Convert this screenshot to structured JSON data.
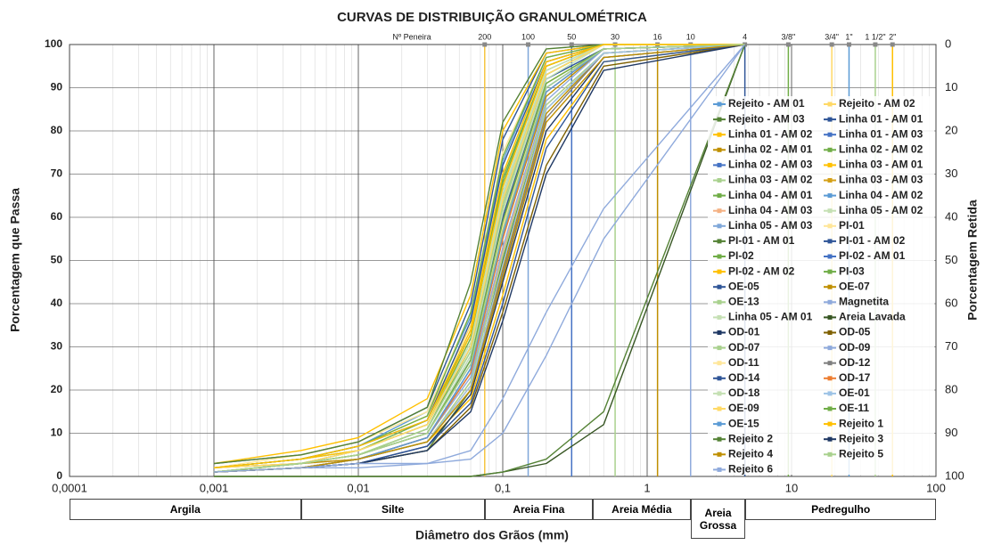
{
  "chart_data": {
    "type": "line",
    "title": "CURVAS DE DISTRIBUIÇÃO GRANULOMÉTRICA",
    "xlabel": "Diâmetro dos Grãos (mm)",
    "ylabel": "Porcentagem que Passa",
    "y2label": "Porcentagem Retida",
    "sieve_title": "Nº Peneira",
    "log_x": true,
    "grid": true,
    "xlim": [
      0.0001,
      100
    ],
    "xticks": [
      {
        "value": 0.0001,
        "label": "0,0001"
      },
      {
        "value": 0.001,
        "label": "0,001"
      },
      {
        "value": 0.01,
        "label": "0,01"
      },
      {
        "value": 0.1,
        "label": "0,1"
      },
      1,
      10,
      100
    ],
    "ylim": [
      0,
      100
    ],
    "yticks": [
      0,
      10,
      20,
      30,
      40,
      50,
      60,
      70,
      80,
      90,
      100
    ],
    "y2lim": [
      100,
      0
    ],
    "y2ticks": [
      0,
      10,
      20,
      30,
      40,
      50,
      60,
      70,
      80,
      90,
      100
    ],
    "sieves": [
      {
        "label": "200",
        "value": 0.075,
        "color": "#f5c542"
      },
      {
        "label": "100",
        "value": 0.15,
        "color": "#7fa7d9"
      },
      {
        "label": "50",
        "value": 0.3,
        "color": "#4472c4"
      },
      {
        "label": "30",
        "value": 0.6,
        "color": "#a9d18e"
      },
      {
        "label": "16",
        "value": 1.18,
        "color": "#bf8f00"
      },
      {
        "label": "10",
        "value": 2,
        "color": "#8faadc"
      },
      {
        "label": "4",
        "value": 4.75,
        "color": "#2f5597"
      },
      {
        "label": "3/8\"",
        "value": 9.5,
        "color": "#70ad47"
      },
      {
        "label": "3/4\"",
        "value": 19,
        "color": "#ffd966"
      },
      {
        "label": "1\"",
        "value": 25,
        "color": "#5b9bd5"
      },
      {
        "label": "1 1/2\"",
        "value": 38,
        "color": "#a9d18e"
      },
      {
        "label": "2\"",
        "value": 50,
        "color": "#ffc000"
      }
    ],
    "classes": [
      {
        "label": "Argila",
        "from": 0.0001,
        "to": 0.004
      },
      {
        "label": "Silte",
        "from": 0.004,
        "to": 0.075
      },
      {
        "label": "Areia Fina",
        "from": 0.075,
        "to": 0.42
      },
      {
        "label": "Areia Média",
        "from": 0.42,
        "to": 2
      },
      {
        "label": "Areia Grossa",
        "from": 2,
        "to": 4.8
      },
      {
        "label": "Pedregulho",
        "from": 4.8,
        "to": 100
      }
    ],
    "x": [
      0.001,
      0.004,
      0.01,
      0.03,
      0.06,
      0.1,
      0.2,
      0.5,
      4.75
    ],
    "series": [
      {
        "name": "Rejeito - AM 01",
        "color": "#5b9bd5",
        "values": [
          1,
          3,
          5,
          10,
          28,
          60,
          92,
          99,
          100
        ]
      },
      {
        "name": "Rejeito - AM 02",
        "color": "#ffd966",
        "values": [
          2,
          4,
          7,
          14,
          35,
          70,
          96,
          100,
          100
        ]
      },
      {
        "name": "Rejeito - AM 03",
        "color": "#548235",
        "values": [
          1,
          2,
          3,
          6,
          20,
          50,
          85,
          98,
          100
        ]
      },
      {
        "name": "Linha 01 - AM 01",
        "color": "#2f5597",
        "values": [
          3,
          5,
          8,
          16,
          40,
          78,
          98,
          100,
          100
        ]
      },
      {
        "name": "Linha 01 - AM 02",
        "color": "#ffc000",
        "values": [
          1,
          2,
          4,
          8,
          18,
          42,
          78,
          96,
          100
        ]
      },
      {
        "name": "Linha 01 - AM 03",
        "color": "#4472c4",
        "values": [
          2,
          3,
          6,
          12,
          30,
          65,
          94,
          100,
          100
        ]
      },
      {
        "name": "Linha 02 - AM 01",
        "color": "#bf8f00",
        "values": [
          1,
          3,
          4,
          9,
          24,
          55,
          88,
          99,
          100
        ]
      },
      {
        "name": "Linha 02 - AM 02",
        "color": "#70ad47",
        "values": [
          2,
          4,
          6,
          12,
          32,
          68,
          95,
          100,
          100
        ]
      },
      {
        "name": "Linha 02 - AM 03",
        "color": "#4472c4",
        "values": [
          1,
          2,
          4,
          9,
          25,
          57,
          90,
          99,
          100
        ]
      },
      {
        "name": "Linha 03 - AM 01",
        "color": "#ffc000",
        "values": [
          3,
          6,
          9,
          18,
          42,
          80,
          98,
          100,
          100
        ]
      },
      {
        "name": "Linha 03 - AM 02",
        "color": "#a9d18e",
        "values": [
          1,
          3,
          5,
          11,
          29,
          62,
          93,
          100,
          100
        ]
      },
      {
        "name": "Linha 03 - AM 03",
        "color": "#d4a017",
        "values": [
          2,
          3,
          5,
          10,
          27,
          59,
          91,
          99,
          100
        ]
      },
      {
        "name": "Linha 04 - AM 01",
        "color": "#70ad47",
        "values": [
          1,
          3,
          6,
          13,
          33,
          69,
          95,
          100,
          100
        ]
      },
      {
        "name": "Linha 04 - AM 02",
        "color": "#5b9bd5",
        "values": [
          2,
          4,
          7,
          15,
          37,
          73,
          97,
          100,
          100
        ]
      },
      {
        "name": "Linha 04 - AM 03",
        "color": "#f4b183",
        "values": [
          1,
          2,
          4,
          8,
          22,
          52,
          86,
          98,
          100
        ]
      },
      {
        "name": "Linha 05 - AM 02",
        "color": "#c5e0b4",
        "values": [
          2,
          4,
          6,
          12,
          31,
          66,
          94,
          100,
          100
        ]
      },
      {
        "name": "Linha 05 - AM 03",
        "color": "#7fa7d9",
        "values": [
          1,
          3,
          5,
          10,
          26,
          58,
          90,
          99,
          100
        ]
      },
      {
        "name": "PI-01",
        "color": "#ffe699",
        "values": [
          2,
          5,
          8,
          15,
          38,
          75,
          97,
          100,
          100
        ]
      },
      {
        "name": "PI-01 - AM 01",
        "color": "#548235",
        "values": [
          3,
          5,
          8,
          16,
          45,
          82,
          99,
          100,
          100
        ]
      },
      {
        "name": "PI-01 - AM 02",
        "color": "#2f5597",
        "values": [
          2,
          4,
          7,
          13,
          36,
          72,
          96,
          100,
          100
        ]
      },
      {
        "name": "PI-02",
        "color": "#70ad47",
        "values": [
          1,
          3,
          5,
          11,
          30,
          64,
          93,
          100,
          100
        ]
      },
      {
        "name": "PI-02 - AM 01",
        "color": "#4472c4",
        "values": [
          1,
          2,
          4,
          9,
          24,
          56,
          89,
          99,
          100
        ]
      },
      {
        "name": "PI-02 - AM 02",
        "color": "#ffc000",
        "values": [
          2,
          4,
          6,
          12,
          33,
          67,
          95,
          100,
          100
        ]
      },
      {
        "name": "PI-03",
        "color": "#70ad47",
        "values": [
          2,
          4,
          7,
          14,
          38,
          74,
          97,
          100,
          100
        ]
      },
      {
        "name": "OE-05",
        "color": "#2f5597",
        "values": [
          1,
          3,
          5,
          10,
          27,
          60,
          92,
          99,
          100
        ]
      },
      {
        "name": "OE-07",
        "color": "#bf8f00",
        "values": [
          1,
          2,
          4,
          8,
          21,
          48,
          84,
          98,
          100
        ]
      },
      {
        "name": "OE-13",
        "color": "#a9d18e",
        "values": [
          1,
          3,
          5,
          11,
          29,
          63,
          93,
          100,
          100
        ]
      },
      {
        "name": "Magnetita",
        "color": "#8faadc",
        "values": [
          1,
          2,
          2,
          3,
          4,
          10,
          28,
          55,
          100
        ]
      },
      {
        "name": "Linha 05 - AM 01",
        "color": "#c5e0b4",
        "values": [
          2,
          3,
          6,
          12,
          31,
          65,
          94,
          100,
          100
        ]
      },
      {
        "name": "Areia Lavada",
        "color": "#375623",
        "values": [
          0,
          0,
          0,
          0,
          0,
          1,
          3,
          12,
          100
        ]
      },
      {
        "name": "OD-01",
        "color": "#1f3864",
        "values": [
          1,
          2,
          3,
          7,
          19,
          45,
          80,
          97,
          100
        ]
      },
      {
        "name": "OD-05",
        "color": "#7f6000",
        "values": [
          1,
          2,
          3,
          6,
          16,
          38,
          72,
          95,
          100
        ]
      },
      {
        "name": "OD-07",
        "color": "#a9d18e",
        "values": [
          1,
          2,
          4,
          8,
          22,
          51,
          86,
          98,
          100
        ]
      },
      {
        "name": "OD-09",
        "color": "#8faadc",
        "values": [
          1,
          2,
          4,
          9,
          23,
          53,
          87,
          99,
          100
        ]
      },
      {
        "name": "OD-11",
        "color": "#ffe699",
        "values": [
          1,
          3,
          5,
          10,
          26,
          58,
          91,
          99,
          100
        ]
      },
      {
        "name": "OD-12",
        "color": "#7f7f7f",
        "values": [
          1,
          2,
          4,
          8,
          20,
          47,
          83,
          98,
          100
        ]
      },
      {
        "name": "OD-14",
        "color": "#2f5597",
        "values": [
          1,
          2,
          3,
          7,
          17,
          40,
          76,
          96,
          100
        ]
      },
      {
        "name": "OD-17",
        "color": "#ed7d31",
        "values": [
          1,
          2,
          4,
          9,
          24,
          55,
          89,
          99,
          100
        ]
      },
      {
        "name": "OD-18",
        "color": "#c5e0b4",
        "values": [
          1,
          3,
          5,
          10,
          28,
          61,
          92,
          100,
          100
        ]
      },
      {
        "name": "OE-01",
        "color": "#9dc3e6",
        "values": [
          1,
          2,
          4,
          8,
          21,
          49,
          85,
          98,
          100
        ]
      },
      {
        "name": "OE-09",
        "color": "#ffd966",
        "values": [
          2,
          3,
          6,
          12,
          30,
          64,
          93,
          100,
          100
        ]
      },
      {
        "name": "OE-11",
        "color": "#70ad47",
        "values": [
          1,
          3,
          5,
          10,
          27,
          59,
          91,
          99,
          100
        ]
      },
      {
        "name": "OE-15",
        "color": "#5b9bd5",
        "values": [
          1,
          2,
          4,
          9,
          25,
          56,
          89,
          99,
          100
        ]
      },
      {
        "name": "Rejeito 1",
        "color": "#ffc000",
        "values": [
          2,
          4,
          7,
          13,
          34,
          70,
          96,
          100,
          100
        ]
      },
      {
        "name": "Rejeito 2",
        "color": "#548235",
        "values": [
          0,
          0,
          0,
          0,
          0,
          1,
          4,
          15,
          100
        ]
      },
      {
        "name": "Rejeito 3",
        "color": "#1f3864",
        "values": [
          1,
          2,
          3,
          6,
          15,
          36,
          70,
          94,
          100
        ]
      },
      {
        "name": "Rejeito 4",
        "color": "#bf8f00",
        "values": [
          1,
          2,
          4,
          8,
          20,
          46,
          82,
          97,
          100
        ]
      },
      {
        "name": "Rejeito 5",
        "color": "#a9d18e",
        "values": [
          1,
          3,
          5,
          10,
          26,
          57,
          90,
          99,
          100
        ]
      },
      {
        "name": "Rejeito 6",
        "color": "#8faadc",
        "values": [
          1,
          2,
          3,
          3,
          6,
          18,
          38,
          62,
          100
        ]
      }
    ]
  }
}
